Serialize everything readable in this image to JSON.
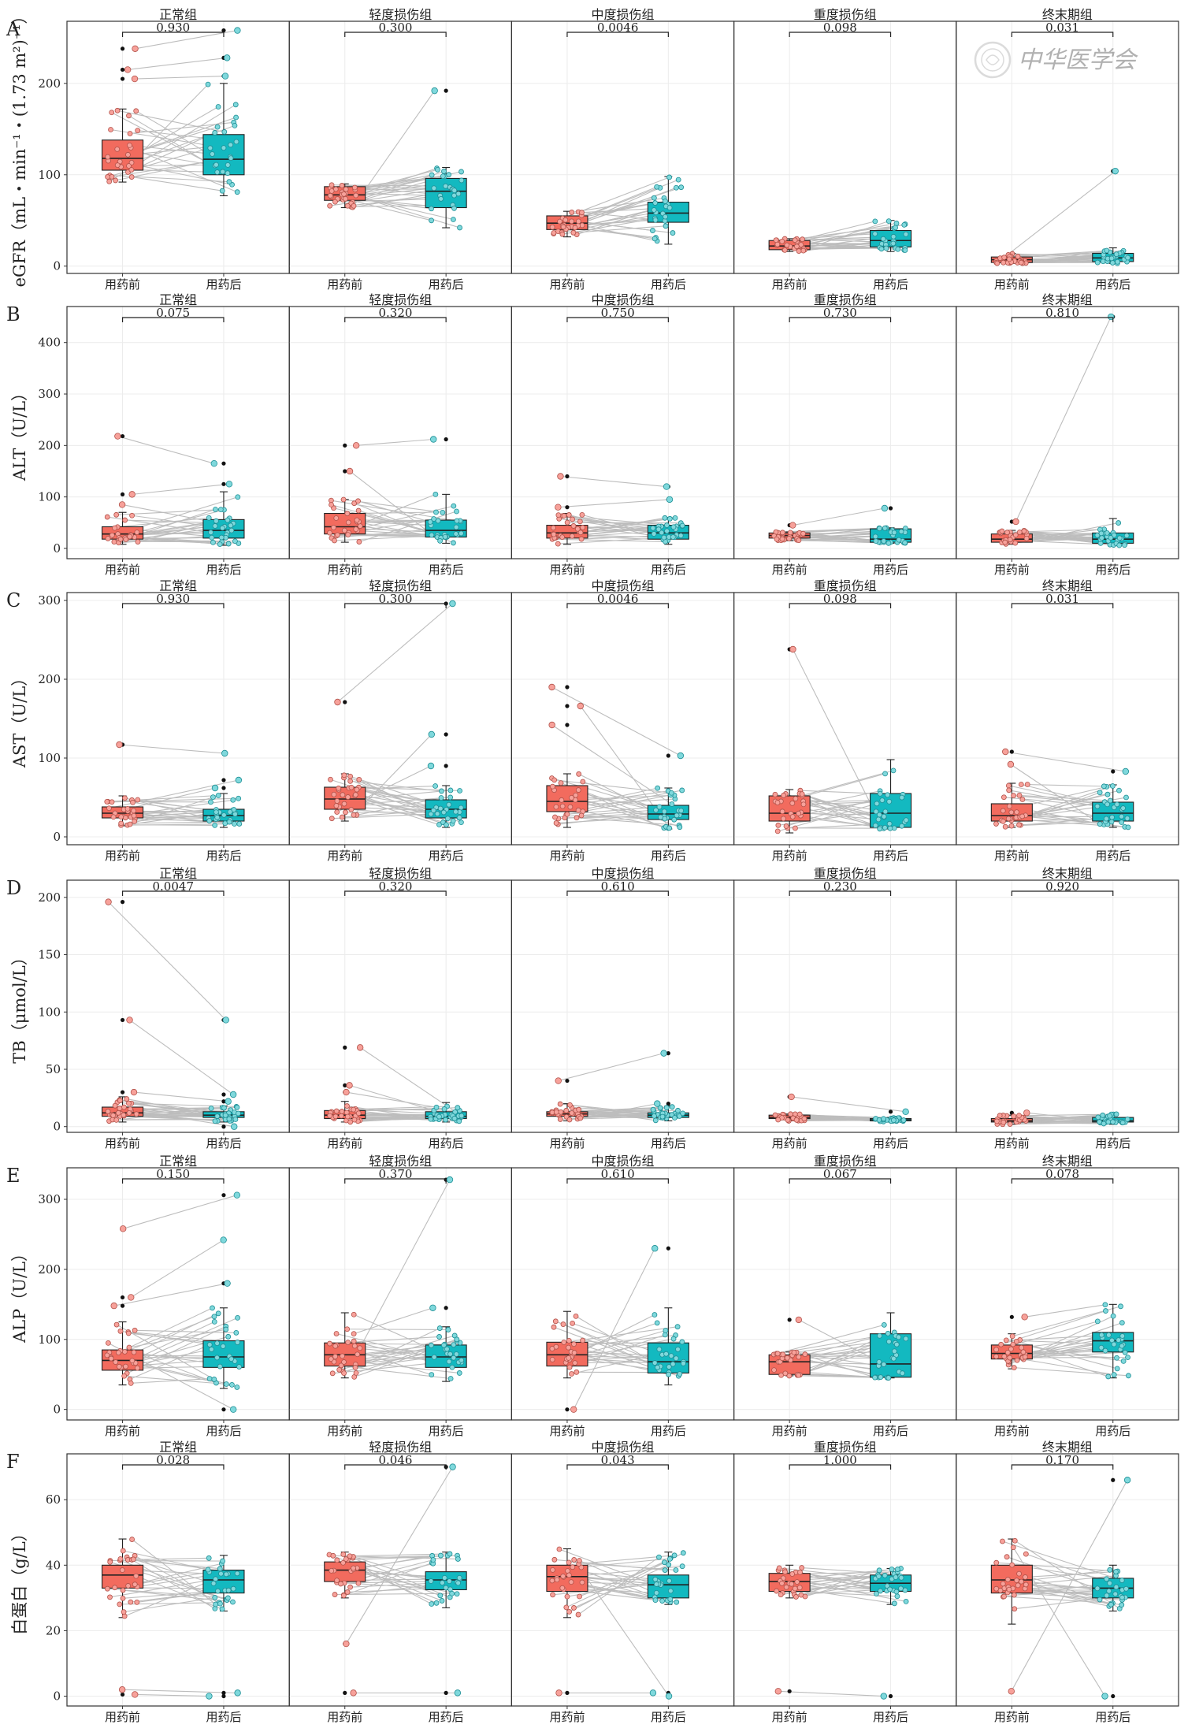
{
  "groups": [
    "正常组",
    "轻度损伤组",
    "中度损伤组",
    "重度损伤组",
    "终末期组"
  ],
  "x_labels": [
    "用药前",
    "用药后"
  ],
  "watermark_text": "中华医学会",
  "colors": {
    "before": "#F26B5E",
    "after": "#13B9C0",
    "before_point": "#F7A19A",
    "after_point": "#7FD8DC",
    "pair_line": "#bdbdbd"
  },
  "chart_data": [
    {
      "type": "box",
      "letter": "A",
      "ylabel": "eGFR（mL・min⁻¹・(1.73 m²)⁻¹）",
      "ylim": [
        -8,
        268
      ],
      "yticks": [
        0,
        100,
        200
      ],
      "pvalues": [
        "0.930",
        "0.300",
        "0.0046",
        "0.098",
        "0.031"
      ],
      "boxes": [
        {
          "before": {
            "q1": 105,
            "median": 118,
            "q3": 138,
            "lo": 92,
            "hi": 172
          },
          "after": {
            "q1": 100,
            "median": 117,
            "q3": 144,
            "lo": 77,
            "hi": 200
          },
          "before_outliers": [
            238,
            215,
            205
          ],
          "after_outliers": [
            258,
            228,
            208
          ]
        },
        {
          "before": {
            "q1": 72,
            "median": 78,
            "q3": 87,
            "lo": 64,
            "hi": 90
          },
          "after": {
            "q1": 64,
            "median": 82,
            "q3": 96,
            "lo": 42,
            "hi": 108
          },
          "before_outliers": [],
          "after_outliers": [
            192
          ]
        },
        {
          "before": {
            "q1": 40,
            "median": 47,
            "q3": 55,
            "lo": 32,
            "hi": 60
          },
          "after": {
            "q1": 48,
            "median": 58,
            "q3": 70,
            "lo": 24,
            "hi": 98
          },
          "before_outliers": [],
          "after_outliers": []
        },
        {
          "before": {
            "q1": 18,
            "median": 22,
            "q3": 28,
            "lo": 16,
            "hi": 30
          },
          "after": {
            "q1": 21,
            "median": 28,
            "q3": 39,
            "lo": 16,
            "hi": 50
          },
          "before_outliers": [],
          "after_outliers": []
        },
        {
          "before": {
            "q1": 4,
            "median": 7,
            "q3": 10,
            "lo": 3,
            "hi": 14
          },
          "after": {
            "q1": 5,
            "median": 9,
            "q3": 14,
            "lo": 3,
            "hi": 20
          },
          "before_outliers": [],
          "after_outliers": [
            104
          ]
        }
      ]
    },
    {
      "type": "box",
      "letter": "B",
      "ylabel": "ALT（U/L）",
      "ylim": [
        -20,
        470
      ],
      "yticks": [
        0,
        100,
        200,
        300,
        400
      ],
      "pvalues": [
        "0.075",
        "0.320",
        "0.750",
        "0.730",
        "0.810"
      ],
      "boxes": [
        {
          "before": {
            "q1": 18,
            "median": 28,
            "q3": 42,
            "lo": 8,
            "hi": 70
          },
          "after": {
            "q1": 20,
            "median": 35,
            "q3": 56,
            "lo": 6,
            "hi": 110
          },
          "before_outliers": [
            218,
            105,
            85
          ],
          "after_outliers": [
            165,
            125
          ]
        },
        {
          "before": {
            "q1": 28,
            "median": 42,
            "q3": 68,
            "lo": 12,
            "hi": 95
          },
          "after": {
            "q1": 22,
            "median": 35,
            "q3": 55,
            "lo": 10,
            "hi": 105
          },
          "before_outliers": [
            200,
            150
          ],
          "after_outliers": [
            212
          ]
        },
        {
          "before": {
            "q1": 20,
            "median": 30,
            "q3": 45,
            "lo": 8,
            "hi": 68
          },
          "after": {
            "q1": 18,
            "median": 30,
            "q3": 45,
            "lo": 8,
            "hi": 60
          },
          "before_outliers": [
            140,
            80
          ],
          "after_outliers": [
            120,
            95
          ]
        },
        {
          "before": {
            "q1": 20,
            "median": 25,
            "q3": 30,
            "lo": 15,
            "hi": 32
          },
          "after": {
            "q1": 12,
            "median": 18,
            "q3": 38,
            "lo": 10,
            "hi": 40
          },
          "before_outliers": [
            45
          ],
          "after_outliers": [
            78
          ]
        },
        {
          "before": {
            "q1": 12,
            "median": 18,
            "q3": 28,
            "lo": 8,
            "hi": 35
          },
          "after": {
            "q1": 10,
            "median": 18,
            "q3": 30,
            "lo": 6,
            "hi": 58
          },
          "before_outliers": [
            52
          ],
          "after_outliers": [
            450
          ]
        }
      ]
    },
    {
      "type": "box",
      "letter": "C",
      "ylabel": "AST（U/L）",
      "ylim": [
        -10,
        310
      ],
      "yticks": [
        0,
        100,
        200,
        300
      ],
      "pvalues": [
        "0.930",
        "0.300",
        "0.0046",
        "0.098",
        "0.031"
      ],
      "boxes": [
        {
          "before": {
            "q1": 24,
            "median": 30,
            "q3": 38,
            "lo": 14,
            "hi": 52
          },
          "after": {
            "q1": 20,
            "median": 27,
            "q3": 35,
            "lo": 12,
            "hi": 55
          },
          "before_outliers": [
            117
          ],
          "after_outliers": [
            106,
            72,
            62
          ]
        },
        {
          "before": {
            "q1": 35,
            "median": 48,
            "q3": 63,
            "lo": 20,
            "hi": 80
          },
          "after": {
            "q1": 24,
            "median": 35,
            "q3": 47,
            "lo": 12,
            "hi": 65
          },
          "before_outliers": [
            171
          ],
          "after_outliers": [
            296,
            130,
            90
          ]
        },
        {
          "before": {
            "q1": 32,
            "median": 45,
            "q3": 65,
            "lo": 12,
            "hi": 80
          },
          "after": {
            "q1": 22,
            "median": 29,
            "q3": 40,
            "lo": 10,
            "hi": 62
          },
          "before_outliers": [
            190,
            166,
            142
          ],
          "after_outliers": [
            103
          ]
        },
        {
          "before": {
            "q1": 20,
            "median": 30,
            "q3": 52,
            "lo": 5,
            "hi": 60
          },
          "after": {
            "q1": 12,
            "median": 30,
            "q3": 55,
            "lo": 10,
            "hi": 98
          },
          "before_outliers": [
            238
          ],
          "after_outliers": []
        },
        {
          "before": {
            "q1": 20,
            "median": 27,
            "q3": 42,
            "lo": 12,
            "hi": 68
          },
          "after": {
            "q1": 20,
            "median": 30,
            "q3": 44,
            "lo": 12,
            "hi": 66
          },
          "before_outliers": [
            108,
            92
          ],
          "after_outliers": [
            83
          ]
        }
      ]
    },
    {
      "type": "box",
      "letter": "D",
      "ylabel": "TB（μmol/L）",
      "ylim": [
        -5,
        215
      ],
      "yticks": [
        0,
        50,
        100,
        150,
        200
      ],
      "pvalues": [
        "0.0047",
        "0.320",
        "0.610",
        "0.230",
        "0.920"
      ],
      "boxes": [
        {
          "before": {
            "q1": 9,
            "median": 12,
            "q3": 17,
            "lo": 4,
            "hi": 26
          },
          "after": {
            "q1": 8,
            "median": 10,
            "q3": 13,
            "lo": 4,
            "hi": 18
          },
          "before_outliers": [
            196,
            93,
            30
          ],
          "after_outliers": [
            93,
            28,
            22,
            0
          ]
        },
        {
          "before": {
            "q1": 7,
            "median": 10,
            "q3": 14,
            "lo": 4,
            "hi": 22
          },
          "after": {
            "q1": 7,
            "median": 9,
            "q3": 13,
            "lo": 4,
            "hi": 21
          },
          "before_outliers": [
            69,
            36,
            30
          ],
          "after_outliers": []
        },
        {
          "before": {
            "q1": 9,
            "median": 11,
            "q3": 13,
            "lo": 5,
            "hi": 20
          },
          "after": {
            "q1": 8,
            "median": 10,
            "q3": 12,
            "lo": 5,
            "hi": 18
          },
          "before_outliers": [
            40
          ],
          "after_outliers": [
            64,
            20
          ]
        },
        {
          "before": {
            "q1": 7,
            "median": 8,
            "q3": 10,
            "lo": 5,
            "hi": 11
          },
          "after": {
            "q1": 5,
            "median": 6,
            "q3": 7,
            "lo": 4,
            "hi": 8
          },
          "before_outliers": [
            26
          ],
          "after_outliers": [
            13
          ]
        },
        {
          "before": {
            "q1": 4,
            "median": 5,
            "q3": 7,
            "lo": 2,
            "hi": 10
          },
          "after": {
            "q1": 4,
            "median": 5,
            "q3": 8,
            "lo": 2,
            "hi": 11
          },
          "before_outliers": [
            12
          ],
          "after_outliers": []
        }
      ]
    },
    {
      "type": "box",
      "letter": "E",
      "ylabel": "ALP（U/L）",
      "ylim": [
        -15,
        345
      ],
      "yticks": [
        0,
        100,
        200,
        300
      ],
      "pvalues": [
        "0.150",
        "0.370",
        "0.610",
        "0.067",
        "0.078"
      ],
      "boxes": [
        {
          "before": {
            "q1": 56,
            "median": 70,
            "q3": 85,
            "lo": 35,
            "hi": 125
          },
          "after": {
            "q1": 60,
            "median": 75,
            "q3": 98,
            "lo": 30,
            "hi": 145
          },
          "before_outliers": [
            258,
            160,
            148
          ],
          "after_outliers": [
            306,
            242,
            180,
            0
          ]
        },
        {
          "before": {
            "q1": 62,
            "median": 78,
            "q3": 95,
            "lo": 45,
            "hi": 138
          },
          "after": {
            "q1": 60,
            "median": 75,
            "q3": 92,
            "lo": 40,
            "hi": 118
          },
          "before_outliers": [],
          "after_outliers": [
            328,
            145
          ]
        },
        {
          "before": {
            "q1": 62,
            "median": 78,
            "q3": 96,
            "lo": 45,
            "hi": 140
          },
          "after": {
            "q1": 52,
            "median": 68,
            "q3": 95,
            "lo": 35,
            "hi": 145
          },
          "before_outliers": [
            0
          ],
          "after_outliers": [
            230
          ]
        },
        {
          "before": {
            "q1": 50,
            "median": 68,
            "q3": 78,
            "lo": 48,
            "hi": 82
          },
          "after": {
            "q1": 46,
            "median": 65,
            "q3": 108,
            "lo": 45,
            "hi": 138
          },
          "before_outliers": [
            128
          ],
          "after_outliers": []
        },
        {
          "before": {
            "q1": 72,
            "median": 80,
            "q3": 92,
            "lo": 58,
            "hi": 108
          },
          "after": {
            "q1": 82,
            "median": 98,
            "q3": 110,
            "lo": 45,
            "hi": 150
          },
          "before_outliers": [
            132
          ],
          "after_outliers": []
        }
      ]
    },
    {
      "type": "box",
      "letter": "F",
      "ylabel": "白蛋白（g/L）",
      "ylim": [
        -3,
        74
      ],
      "yticks": [
        0,
        20,
        40,
        60
      ],
      "pvalues": [
        "0.028",
        "0.046",
        "0.043",
        "1.000",
        "0.170"
      ],
      "boxes": [
        {
          "before": {
            "q1": 33,
            "median": 37,
            "q3": 40,
            "lo": 24,
            "hi": 48
          },
          "after": {
            "q1": 31.5,
            "median": 35.5,
            "q3": 38.5,
            "lo": 26,
            "hi": 43
          },
          "before_outliers": [
            2,
            0.5
          ],
          "after_outliers": [
            1,
            0
          ]
        },
        {
          "before": {
            "q1": 35,
            "median": 38.5,
            "q3": 41,
            "lo": 30,
            "hi": 44
          },
          "after": {
            "q1": 32.5,
            "median": 35.5,
            "q3": 38,
            "lo": 27,
            "hi": 44
          },
          "before_outliers": [
            16,
            1
          ],
          "after_outliers": [
            70,
            1
          ]
        },
        {
          "before": {
            "q1": 32,
            "median": 36.5,
            "q3": 40,
            "lo": 24,
            "hi": 45
          },
          "after": {
            "q1": 30,
            "median": 34,
            "q3": 37,
            "lo": 28,
            "hi": 44
          },
          "before_outliers": [
            1
          ],
          "after_outliers": [
            1,
            0
          ]
        },
        {
          "before": {
            "q1": 32,
            "median": 35,
            "q3": 37.5,
            "lo": 30,
            "hi": 40
          },
          "after": {
            "q1": 32,
            "median": 34.5,
            "q3": 37,
            "lo": 28,
            "hi": 39
          },
          "before_outliers": [
            1.5
          ],
          "after_outliers": [
            0
          ]
        },
        {
          "before": {
            "q1": 31.5,
            "median": 35.5,
            "q3": 40,
            "lo": 22,
            "hi": 48
          },
          "after": {
            "q1": 30,
            "median": 33,
            "q3": 36,
            "lo": 26,
            "hi": 40
          },
          "before_outliers": [
            1.5
          ],
          "after_outliers": [
            66,
            0
          ]
        }
      ]
    }
  ]
}
